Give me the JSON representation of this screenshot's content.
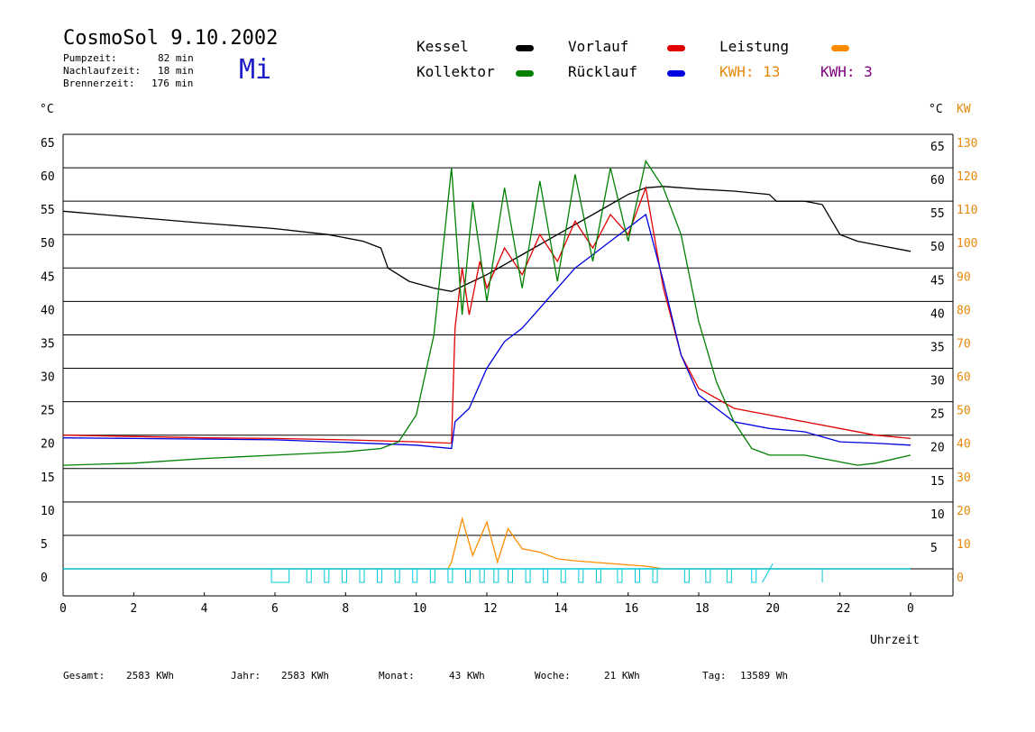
{
  "header": {
    "title": "CosmoSol 9.10.2002",
    "pump_label": "Pumpzeit:",
    "pump_value": "82 min",
    "nach_label": "Nachlaufzeit:",
    "nach_value": "18 min",
    "brenn_label": "Brennerzeit:",
    "brenn_value": "176 min",
    "weekday": "Mi"
  },
  "legend": {
    "kessel": "Kessel",
    "kollektor": "Kollektor",
    "vorlauf": "Vorlauf",
    "ruecklauf": "Rücklauf",
    "leistung": "Leistung",
    "kwh1": "KWH: 13",
    "kwh2": "KWH: 3",
    "colors": {
      "kessel": "#000000",
      "kollektor": "#008000",
      "vorlauf": "#e00000",
      "ruecklauf": "#0000e0",
      "leistung": "#ff8c00",
      "kwh2": "#800080"
    }
  },
  "footer": {
    "gesamt_label": "Gesamt:",
    "gesamt_value": "2583 KWh",
    "jahr_label": "Jahr:",
    "jahr_value": "2583 KWh",
    "monat_label": "Monat:",
    "monat_value": "43 KWh",
    "woche_label": "Woche:",
    "woche_value": "21 KWh",
    "tag_label": "Tag:",
    "tag_value": "13589 Wh"
  },
  "chart_data": {
    "type": "line",
    "ylabel_left": "°C",
    "ylabel_right_1": "°C",
    "ylabel_right_2": "KW",
    "xlabel": "Uhrzeit",
    "xlim": [
      0,
      24
    ],
    "ylim": [
      0,
      65
    ],
    "ylim_right_kw": [
      0,
      130
    ],
    "grid": true,
    "x_ticks": [
      "0",
      "2",
      "4",
      "6",
      "8",
      "10",
      "12",
      "14",
      "16",
      "18",
      "20",
      "22",
      "0"
    ],
    "y_ticks": [
      "0",
      "5",
      "10",
      "15",
      "20",
      "25",
      "30",
      "35",
      "40",
      "45",
      "50",
      "55",
      "60",
      "65"
    ],
    "kw_ticks": [
      "0",
      "10",
      "20",
      "30",
      "40",
      "50",
      "60",
      "70",
      "80",
      "90",
      "100",
      "110",
      "120",
      "130"
    ],
    "series": [
      {
        "name": "Kessel",
        "color": "#000000",
        "x": [
          0,
          2,
          4,
          6,
          7.5,
          8.5,
          9,
          9.2,
          9.8,
          10.5,
          11,
          12,
          13,
          14,
          15,
          16,
          16.5,
          17,
          17.5,
          18,
          19,
          20,
          20.2,
          21,
          21.5,
          22,
          22.5,
          23,
          24
        ],
        "y": [
          53.5,
          52.6,
          51.7,
          50.9,
          50,
          49,
          48,
          45,
          43,
          42,
          41.5,
          44,
          47,
          50,
          53,
          56,
          57,
          57.2,
          57,
          56.8,
          56.5,
          56,
          55,
          55,
          54.5,
          50,
          49,
          48.5,
          47.5
        ]
      },
      {
        "name": "Vorlauf",
        "color": "#e00000",
        "x": [
          0,
          2,
          4,
          6,
          8,
          10,
          11,
          11.1,
          11.3,
          11.5,
          11.8,
          12,
          12.5,
          13,
          13.5,
          14,
          14.5,
          15,
          15.5,
          16,
          16.5,
          17,
          17.5,
          18,
          19,
          20,
          21,
          22,
          23,
          24
        ],
        "y": [
          20,
          19.8,
          19.6,
          19.5,
          19.3,
          19,
          18.8,
          36,
          45,
          38,
          46,
          42,
          48,
          44,
          50,
          46,
          52,
          48,
          53,
          50,
          57,
          42,
          32,
          27,
          24,
          23,
          22,
          21,
          20,
          19.5
        ]
      },
      {
        "name": "Rücklauf",
        "color": "#0000e0",
        "x": [
          0,
          2,
          4,
          6,
          8,
          10,
          11,
          11.1,
          11.5,
          12,
          12.5,
          13,
          13.5,
          14,
          14.5,
          15,
          15.5,
          16,
          16.5,
          17,
          17.5,
          18,
          19,
          20,
          21,
          22,
          23,
          24
        ],
        "y": [
          19.6,
          19.5,
          19.4,
          19.3,
          18.9,
          18.5,
          18,
          22,
          24,
          30,
          34,
          36,
          39,
          42,
          45,
          47,
          49,
          51,
          53,
          43,
          32,
          26,
          22,
          21,
          20.5,
          19,
          18.8,
          18.5
        ]
      },
      {
        "name": "Kollektor",
        "color": "#008000",
        "x": [
          0,
          2,
          4,
          6,
          8,
          9,
          9.5,
          10,
          10.5,
          10.8,
          11,
          11.3,
          11.6,
          12,
          12.5,
          13,
          13.5,
          14,
          14.5,
          15,
          15.5,
          16,
          16.5,
          17,
          17.5,
          18,
          18.5,
          19,
          19.5,
          20,
          21,
          22,
          22.5,
          23,
          24
        ],
        "y": [
          15.5,
          15.8,
          16.5,
          17,
          17.5,
          18,
          19,
          23,
          35,
          50,
          60,
          38,
          55,
          40,
          57,
          42,
          58,
          43,
          59,
          46,
          60,
          49,
          61,
          57,
          50,
          37,
          28,
          22,
          18,
          17,
          17,
          16,
          15.5,
          15.8,
          17
        ]
      },
      {
        "name": "Leistung",
        "color": "#ff8c00",
        "x": [
          0,
          10.9,
          11,
          11.3,
          11.6,
          12,
          12.3,
          12.6,
          13,
          13.5,
          14,
          14.5,
          15,
          15.5,
          16,
          16.5,
          17,
          24
        ],
        "y": [
          0,
          0,
          1,
          7.5,
          2,
          7,
          1,
          6,
          3,
          2.5,
          1.5,
          1.2,
          1,
          0.8,
          0.6,
          0.4,
          0,
          0
        ]
      }
    ]
  }
}
